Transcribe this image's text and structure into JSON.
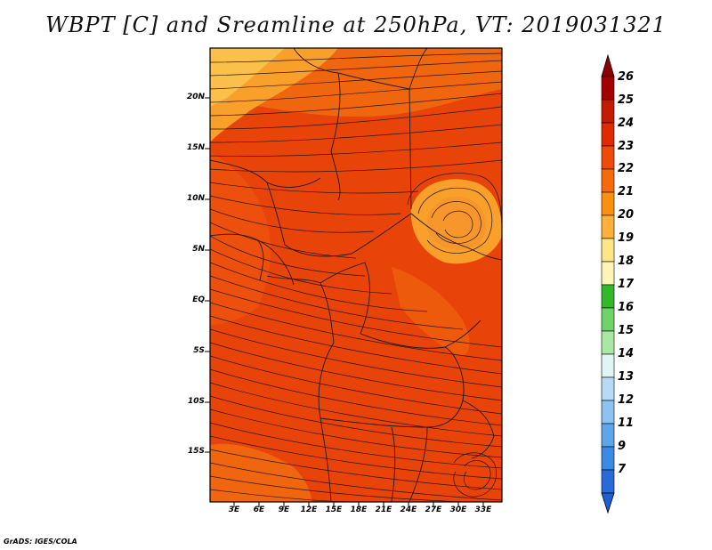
{
  "title": "WBPT [C] and Sreamline at 250hPa, VT: 2019031321",
  "credit": "GrADS: IGES/COLA",
  "lat_labels": [
    "20N",
    "15N",
    "10N",
    "5N",
    "EQ",
    "5S",
    "10S",
    "15S"
  ],
  "lon_labels": [
    "3E",
    "6E",
    "9E",
    "12E",
    "15E",
    "18E",
    "21E",
    "24E",
    "27E",
    "30E",
    "33E"
  ],
  "colorbar": {
    "labels": [
      "26",
      "25",
      "24",
      "23",
      "22",
      "21",
      "20",
      "19",
      "18",
      "17",
      "16",
      "15",
      "14",
      "13",
      "12",
      "11",
      "9",
      "7"
    ],
    "colors": [
      "#a50000",
      "#c41a00",
      "#e02a00",
      "#ef4a08",
      "#f66a0a",
      "#fb900f",
      "#fcb23a",
      "#fde68a",
      "#fff4b8",
      "#33b82c",
      "#6fd36a",
      "#a8e8a2",
      "#e0f6f4",
      "#b6dcf5",
      "#8cc3f0",
      "#5ea6ea",
      "#3d8ae3",
      "#2a6ad8"
    ],
    "top_cap_color": "#8c0000",
    "bottom_cap_color": "#1e5fd4"
  },
  "map": {
    "field_colors": [
      "#e8440a",
      "#f0660e",
      "#f8a02a",
      "#fbc04a"
    ],
    "streamline_color": "#2a1408",
    "border_color": "#1a1a1a"
  }
}
